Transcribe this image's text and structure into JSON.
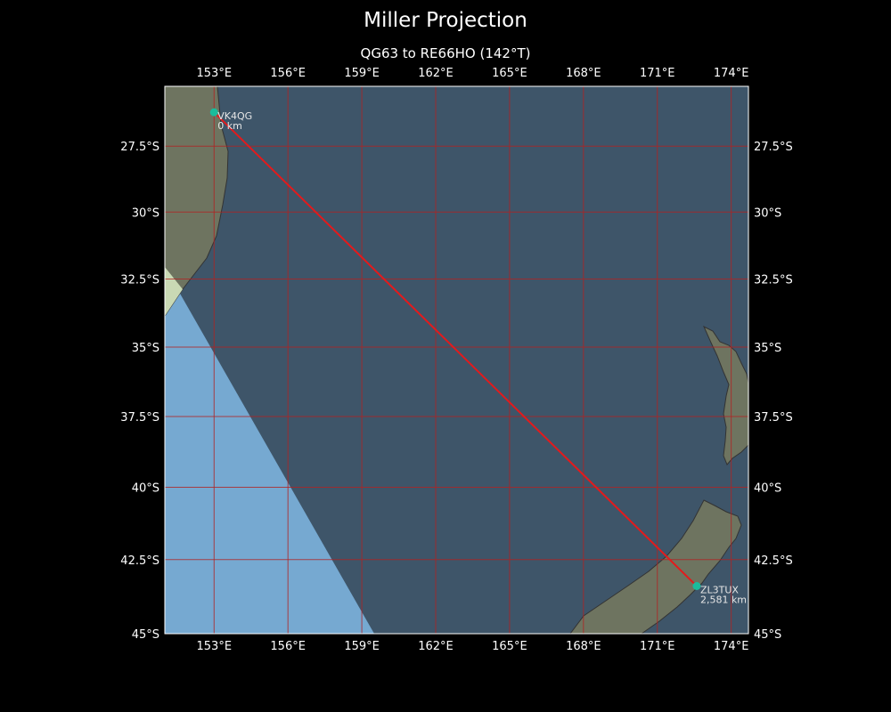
{
  "title": "Miller Projection",
  "subtitle": "QG63 to RE66HO (142°T)",
  "colors": {
    "background": "#000000",
    "ocean_dark": "#3e5569",
    "ocean_light": "#76a9d1",
    "land": "#6e7460",
    "coast": "#333333",
    "grid": "#b22222",
    "path": "#e31a1c",
    "station": "#1abc9c"
  },
  "map": {
    "lon_range": [
      151,
      174.7
    ],
    "lat_range": [
      -45,
      -25.2
    ],
    "lon_ticks": [
      {
        "value": 153,
        "label": "153°E"
      },
      {
        "value": 156,
        "label": "156°E"
      },
      {
        "value": 159,
        "label": "159°E"
      },
      {
        "value": 162,
        "label": "162°E"
      },
      {
        "value": 165,
        "label": "165°E"
      },
      {
        "value": 168,
        "label": "168°E"
      },
      {
        "value": 171,
        "label": "171°E"
      },
      {
        "value": 174,
        "label": "174°E"
      }
    ],
    "lat_ticks": [
      {
        "value": -27.5,
        "label": "27.5°S"
      },
      {
        "value": -30,
        "label": "30°S"
      },
      {
        "value": -32.5,
        "label": "32.5°S"
      },
      {
        "value": -35,
        "label": "35°S"
      },
      {
        "value": -37.5,
        "label": "37.5°S"
      },
      {
        "value": -40,
        "label": "40°S"
      },
      {
        "value": -42.5,
        "label": "42.5°S"
      },
      {
        "value": -45,
        "label": "45°S"
      }
    ],
    "stations": [
      {
        "name": "VK4QG",
        "distance": "0 km",
        "lon": 153.0,
        "lat": -26.2
      },
      {
        "name": "ZL3TUX",
        "distance": "2,581 km",
        "lon": 172.6,
        "lat": -43.4
      }
    ]
  }
}
